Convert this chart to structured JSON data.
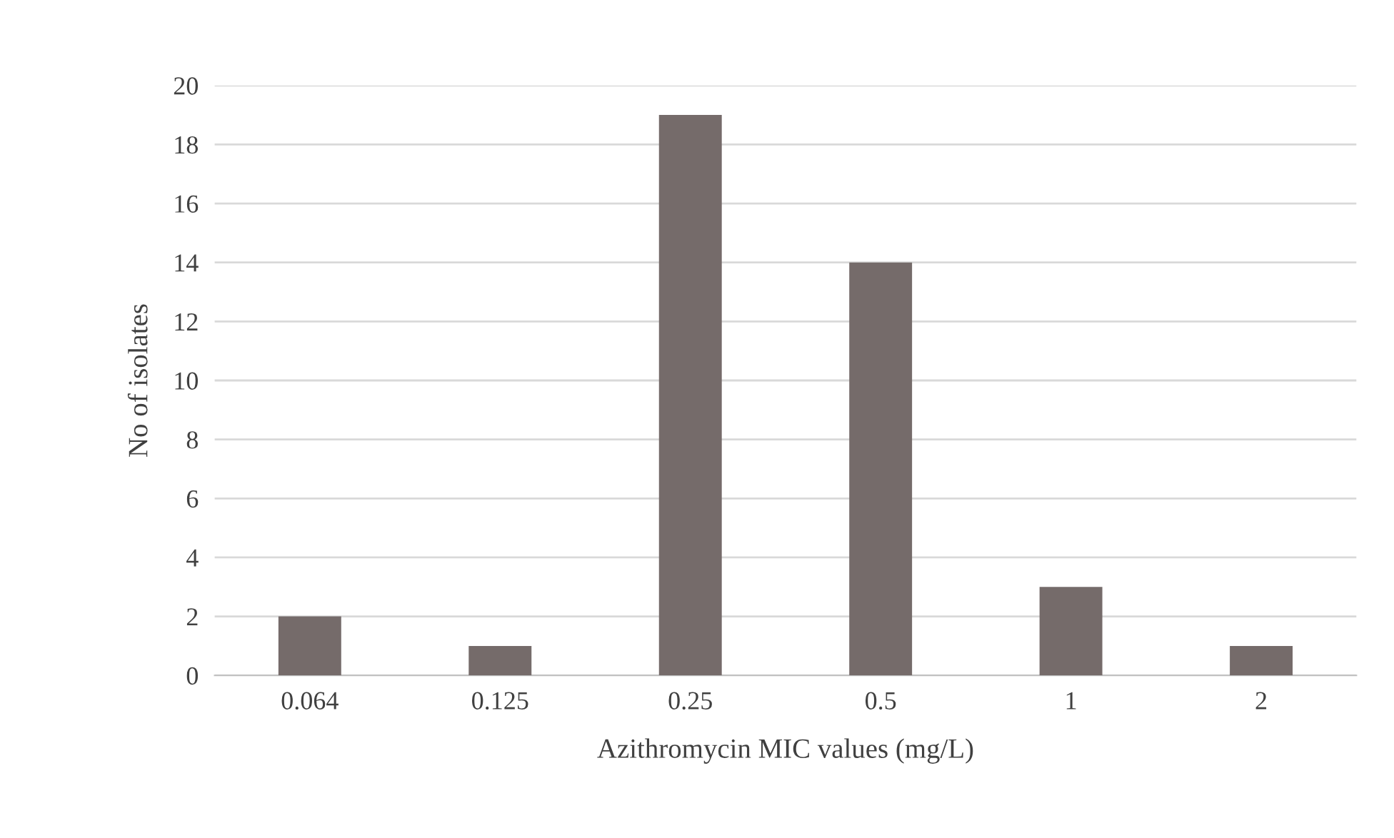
{
  "chart_data": {
    "type": "bar",
    "xlabel": "Azithromycin MIC values (mg/L)",
    "ylabel": "No of isolates",
    "categories": [
      "0.064",
      "0.125",
      "0.25",
      "0.5",
      "1",
      "2"
    ],
    "values": [
      2,
      1,
      19,
      14,
      3,
      1
    ],
    "color": "#756b6a",
    "ylim": [
      0,
      20
    ],
    "yticks": [
      0,
      2,
      4,
      6,
      8,
      10,
      12,
      14,
      16,
      18,
      20
    ],
    "grid": "y",
    "legend": false
  }
}
